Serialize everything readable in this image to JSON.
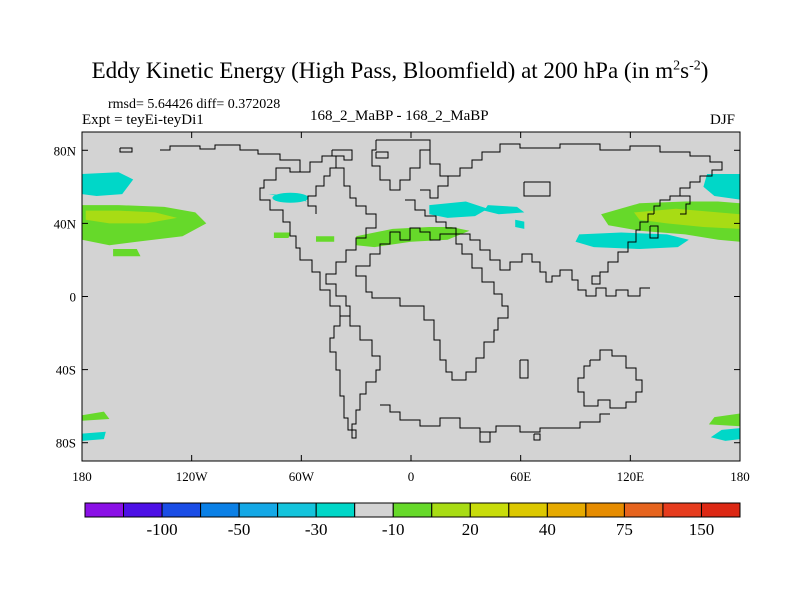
{
  "title": {
    "main": "Eddy Kinetic Energy (High Pass, Bloomfield) at 200 hPa (in m",
    "sup1": "2",
    "s": "s",
    "sup2": "-2",
    "close": ")"
  },
  "stats": "rmsd= 5.64426 diff= 0.372028",
  "expt": "Expt = teyEi-teyDi1",
  "comparison": "168_2_MaBP - 168_2_MaBP",
  "season": "DJF",
  "colors": {
    "ocean_gray": "#d3d3d3",
    "cyan": "#00d7c8",
    "green": "#66d92a",
    "yellowgreen": "#a8dc14",
    "coast": "#000000"
  },
  "chart_data": {
    "type": "map-contour",
    "projection": "cylindrical-equidistant",
    "xlim": [
      -180,
      180
    ],
    "ylim": [
      -90,
      90
    ],
    "lon_ticks": [
      {
        "v": -180,
        "label": "180"
      },
      {
        "v": -120,
        "label": "120W"
      },
      {
        "v": -60,
        "label": "60W"
      },
      {
        "v": 0,
        "label": "0"
      },
      {
        "v": 60,
        "label": "60E"
      },
      {
        "v": 120,
        "label": "120E"
      },
      {
        "v": 180,
        "label": "180"
      }
    ],
    "lat_ticks": [
      {
        "v": 80,
        "label": "80N"
      },
      {
        "v": 40,
        "label": "40N"
      },
      {
        "v": 0,
        "label": "0"
      },
      {
        "v": -40,
        "label": "40S"
      },
      {
        "v": -80,
        "label": "80S"
      }
    ],
    "colorbar": {
      "colors": [
        "#8a10e6",
        "#4d10e6",
        "#1a4de6",
        "#0a80e6",
        "#14a8e6",
        "#14c4dc",
        "#00d7c8",
        "#d3d3d3",
        "#66d92a",
        "#a8dc14",
        "#c8dc0a",
        "#dcc800",
        "#e6aa00",
        "#e68c00",
        "#e6641e",
        "#e63c1e",
        "#dc2814"
      ],
      "labels": [
        {
          "after_box": 1,
          "label": "-100"
        },
        {
          "after_box": 3,
          "label": "-50"
        },
        {
          "after_box": 5,
          "label": "-30"
        },
        {
          "after_box": 7,
          "label": "-10"
        },
        {
          "after_box": 9,
          "label": "20"
        },
        {
          "after_box": 11,
          "label": "40"
        },
        {
          "after_box": 13,
          "label": "75"
        },
        {
          "after_box": 15,
          "label": "150"
        }
      ]
    },
    "anomaly_patches": [
      {
        "name": "n-pacific-east-cyan",
        "color": "cyan",
        "lonlat": [
          [
            -180,
            67
          ],
          [
            -160,
            68
          ],
          [
            -152,
            64
          ],
          [
            -158,
            56
          ],
          [
            -172,
            55
          ],
          [
            -180,
            56
          ]
        ]
      },
      {
        "name": "n-pacific-east-green",
        "color": "green",
        "lonlat": [
          [
            -180,
            50
          ],
          [
            -160,
            50
          ],
          [
            -135,
            49
          ],
          [
            -118,
            46
          ],
          [
            -112,
            40
          ],
          [
            -125,
            33
          ],
          [
            -150,
            30
          ],
          [
            -165,
            28
          ],
          [
            -180,
            31
          ]
        ]
      },
      {
        "name": "n-pacific-east-yellowgreen",
        "color": "yellowgreen",
        "lonlat": [
          [
            -178,
            47
          ],
          [
            -160,
            47
          ],
          [
            -140,
            46
          ],
          [
            -128,
            43
          ],
          [
            -145,
            40
          ],
          [
            -165,
            40
          ],
          [
            -178,
            42
          ]
        ]
      },
      {
        "name": "n-pacific-small-green",
        "color": "green",
        "lonlat": [
          [
            -163,
            26
          ],
          [
            -150,
            26
          ],
          [
            -148,
            22
          ],
          [
            -163,
            22
          ]
        ]
      },
      {
        "name": "n-america-cyan",
        "color": "cyan",
        "lonlat": [
          [
            -78,
            56
          ],
          [
            -60,
            55
          ],
          [
            -57,
            52
          ],
          0
        ]
      },
      {
        "name": "n-america-small-green",
        "color": "green",
        "lonlat": [
          [
            -75,
            35
          ],
          [
            -66,
            35
          ],
          [
            -67,
            32
          ],
          [
            -75,
            32
          ]
        ]
      },
      {
        "name": "atlantic-small-green",
        "color": "green",
        "lonlat": [
          [
            -52,
            33
          ],
          [
            -42,
            33
          ],
          [
            -42,
            30
          ],
          [
            -52,
            30
          ]
        ]
      },
      {
        "name": "atlantic-green",
        "color": "green",
        "lonlat": [
          [
            -30,
            33
          ],
          [
            -10,
            37
          ],
          [
            10,
            38
          ],
          [
            22,
            38
          ],
          [
            32,
            36
          ],
          [
            20,
            31
          ],
          [
            0,
            30
          ],
          [
            -20,
            27
          ],
          [
            -30,
            28
          ]
        ]
      },
      {
        "name": "europe-cyan",
        "color": "cyan",
        "lonlat": [
          [
            10,
            50
          ],
          [
            30,
            52
          ],
          [
            42,
            48
          ],
          [
            35,
            44
          ],
          [
            20,
            43
          ],
          [
            10,
            45
          ]
        ]
      },
      {
        "name": "asia-cyan",
        "color": "cyan",
        "lonlat": [
          [
            42,
            50
          ],
          [
            58,
            49
          ],
          [
            62,
            46
          ],
          [
            48,
            45
          ],
          [
            40,
            47
          ]
        ]
      },
      {
        "name": "caspian-cyan",
        "color": "cyan",
        "lonlat": [
          [
            57,
            42
          ],
          [
            62,
            41
          ],
          [
            62,
            37
          ],
          [
            57,
            38
          ]
        ]
      },
      {
        "name": "n-pacific-west-green",
        "color": "green",
        "lonlat": [
          [
            104,
            45
          ],
          [
            125,
            51
          ],
          [
            150,
            52
          ],
          [
            168,
            52
          ],
          [
            180,
            51
          ],
          [
            180,
            30
          ],
          [
            168,
            31
          ],
          [
            150,
            34
          ],
          [
            125,
            36
          ],
          [
            108,
            39
          ]
        ]
      },
      {
        "name": "n-pacific-west-yellowgreen",
        "color": "yellowgreen",
        "lonlat": [
          [
            122,
            46
          ],
          [
            145,
            48
          ],
          [
            168,
            46
          ],
          [
            180,
            45
          ],
          [
            180,
            37
          ],
          [
            160,
            38
          ],
          [
            140,
            40
          ],
          [
            125,
            42
          ]
        ]
      },
      {
        "name": "n-pacific-west-cyan",
        "color": "cyan",
        "lonlat": [
          [
            92,
            34
          ],
          [
            115,
            35
          ],
          [
            140,
            34
          ],
          [
            152,
            31
          ],
          [
            146,
            27
          ],
          [
            125,
            26
          ],
          [
            100,
            27
          ],
          [
            90,
            30
          ]
        ]
      },
      {
        "name": "n-pacific-far-cyan",
        "color": "cyan",
        "lonlat": [
          [
            162,
            67
          ],
          [
            180,
            67
          ],
          [
            180,
            53
          ],
          [
            166,
            55
          ],
          [
            160,
            60
          ]
        ]
      },
      {
        "name": "s-pacific-west-green",
        "color": "green",
        "lonlat": [
          [
            -180,
            -65
          ],
          [
            -168,
            -63
          ],
          [
            -165,
            -67
          ],
          [
            -180,
            -68
          ]
        ]
      },
      {
        "name": "s-pacific-west-cyan",
        "color": "cyan",
        "lonlat": [
          [
            -180,
            -75
          ],
          [
            -167,
            -74
          ],
          [
            -168,
            -78
          ],
          [
            -180,
            -79
          ]
        ]
      },
      {
        "name": "s-pacific-east-green",
        "color": "green",
        "lonlat": [
          [
            180,
            -64
          ],
          [
            166,
            -66
          ],
          [
            163,
            -70
          ],
          [
            180,
            -71
          ]
        ]
      },
      {
        "name": "s-pacific-east-cyan",
        "color": "cyan",
        "lonlat": [
          [
            180,
            -72
          ],
          [
            170,
            -73
          ],
          [
            164,
            -77
          ],
          [
            172,
            -79
          ],
          [
            180,
            -78
          ]
        ]
      }
    ]
  }
}
